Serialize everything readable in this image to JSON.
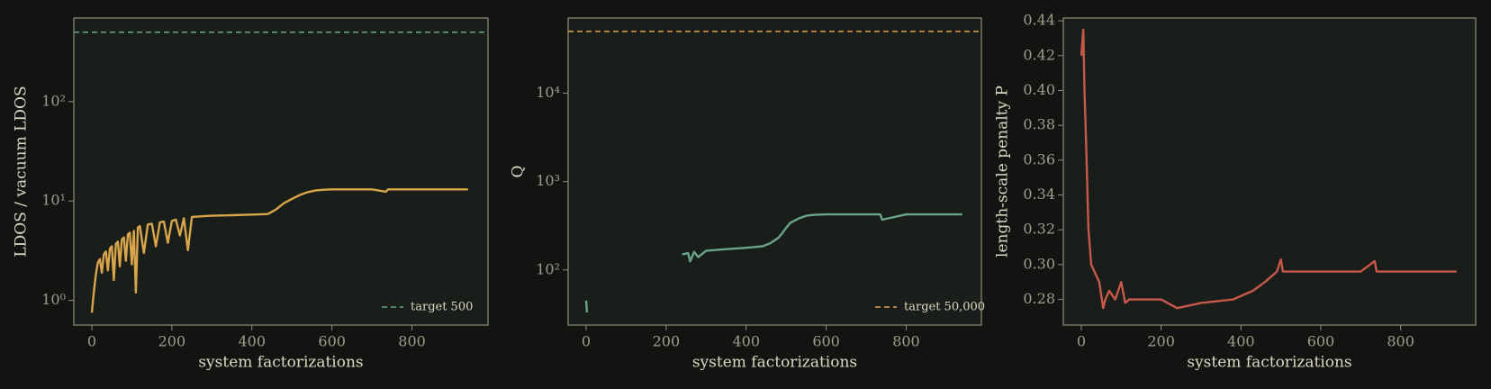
{
  "chart_data": [
    {
      "type": "line",
      "xlabel": "system factorizations",
      "ylabel": "LDOS / vacuum LDOS",
      "log_y": true,
      "xlim": [
        -45,
        990
      ],
      "ylim": [
        0.564,
        695
      ],
      "xticks": [
        0,
        200,
        400,
        600,
        800
      ],
      "yticks": [
        {
          "value": 1,
          "label": "10⁰"
        },
        {
          "value": 10,
          "label": "10¹"
        },
        {
          "value": 100,
          "label": "10²"
        }
      ],
      "x": [
        0,
        5,
        10,
        15,
        20,
        25,
        30,
        35,
        40,
        45,
        50,
        55,
        60,
        65,
        70,
        75,
        80,
        85,
        90,
        95,
        100,
        105,
        110,
        115,
        120,
        130,
        140,
        150,
        160,
        170,
        180,
        190,
        200,
        210,
        220,
        230,
        240,
        250,
        270,
        300,
        350,
        400,
        440,
        460,
        480,
        500,
        520,
        540,
        560,
        580,
        600,
        700,
        735,
        740,
        800,
        900,
        940
      ],
      "series": [
        {
          "color": "#d9a54a",
          "values": [
            0.75,
            1.2,
            1.8,
            2.4,
            2.6,
            1.9,
            2.9,
            3.1,
            2.0,
            3.3,
            3.5,
            1.6,
            3.7,
            3.9,
            2.2,
            4.1,
            4.3,
            2.5,
            4.6,
            4.8,
            2.3,
            5.0,
            1.2,
            5.4,
            5.6,
            3.0,
            5.8,
            5.9,
            3.5,
            6.1,
            6.2,
            3.8,
            6.3,
            6.5,
            4.5,
            6.7,
            3.2,
            6.9,
            7.0,
            7.1,
            7.2,
            7.3,
            7.4,
            8.2,
            9.5,
            10.5,
            11.5,
            12.3,
            12.8,
            13.0,
            13.1,
            13.1,
            12.4,
            13.1,
            13.1,
            13.1,
            13.1
          ]
        }
      ],
      "hline": {
        "value": 500,
        "label": "target 500",
        "color": "#6aa58a"
      }
    },
    {
      "type": "line",
      "xlabel": "system factorizations",
      "ylabel": "Q",
      "log_y": true,
      "xlim": [
        -45,
        988
      ],
      "ylim": [
        23.8,
        70800
      ],
      "xticks": [
        0,
        200,
        400,
        600,
        800
      ],
      "yticks": [
        {
          "value": 100,
          "label": "10²"
        },
        {
          "value": 1000,
          "label": "10³"
        },
        {
          "value": 10000,
          "label": "10⁴"
        }
      ],
      "x": [
        0,
        2,
        4,
        240,
        255,
        260,
        270,
        280,
        300,
        350,
        400,
        440,
        460,
        480,
        490,
        500,
        510,
        530,
        550,
        570,
        600,
        700,
        735,
        740,
        800,
        900,
        940
      ],
      "series": [
        {
          "color": "#6aa58a",
          "values": [
            45,
            33,
            null,
            150,
            155,
            125,
            160,
            140,
            165,
            172,
            178,
            185,
            200,
            230,
            260,
            300,
            340,
            380,
            410,
            420,
            425,
            425,
            425,
            370,
            425,
            425,
            425
          ]
        }
      ],
      "hline": {
        "value": 50000,
        "label": "target 50,000",
        "color": "#d9a54a"
      }
    },
    {
      "type": "line",
      "xlabel": "system factorizations",
      "ylabel": "length-scale penalty P",
      "log_y": false,
      "xlim": [
        -45,
        988
      ],
      "ylim": [
        0.2653,
        0.4416
      ],
      "xticks": [
        0,
        200,
        400,
        600,
        800
      ],
      "yticks": [
        0.28,
        {
          "value": 0.3,
          "label": "0.30"
        },
        0.32,
        0.34,
        0.36,
        0.38,
        {
          "value": 0.4,
          "label": "0.40"
        },
        0.42,
        0.44
      ],
      "x": [
        0,
        5,
        8,
        12,
        18,
        25,
        35,
        45,
        55,
        60,
        70,
        85,
        100,
        110,
        120,
        150,
        200,
        240,
        300,
        380,
        430,
        460,
        490,
        500,
        505,
        540,
        600,
        660,
        700,
        735,
        740,
        800,
        900,
        940
      ],
      "series": [
        {
          "color": "#c8584a",
          "values": [
            0.42,
            0.435,
            0.4,
            0.37,
            0.32,
            0.3,
            0.295,
            0.29,
            0.275,
            0.28,
            0.285,
            0.28,
            0.29,
            0.278,
            0.28,
            0.28,
            0.28,
            0.275,
            0.278,
            0.28,
            0.285,
            0.29,
            0.296,
            0.303,
            0.296,
            0.296,
            0.296,
            0.296,
            0.296,
            0.302,
            0.296,
            0.296,
            0.296,
            0.296
          ]
        }
      ]
    }
  ]
}
